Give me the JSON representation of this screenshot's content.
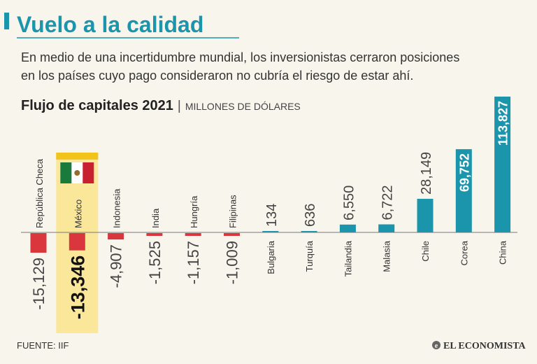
{
  "title": "Vuelo a la calidad",
  "subtitle_lines": [
    "En medio de una incertidumbre mundial, los inversionistas cerraron posiciones",
    "en los países cuyo pago consideraron no cubría el riesgo de estar ahí."
  ],
  "source": "FUENTE: IIF",
  "publisher": "EL ECONOMISTA",
  "colors": {
    "background": "#f8f5ec",
    "title": "#1b95ac",
    "negative": "#d9363e",
    "positive": "#1b95ac",
    "highlight": "#fbe79a",
    "highlight_band": "#f2c318",
    "text": "#333333"
  },
  "chart_data": {
    "type": "bar",
    "title": "Flujo de capitales 2021",
    "unit": "MILLONES DE DÓLARES",
    "categories": [
      "República Checa",
      "México",
      "Indonesia",
      "India",
      "Hungría",
      "Filipinas",
      "Bulgaria",
      "Turquía",
      "Tailandia",
      "Malasia",
      "Chile",
      "Corea",
      "China"
    ],
    "values": [
      -15129,
      -13346,
      -4907,
      -1525,
      -1157,
      -1009,
      134,
      636,
      6550,
      6722,
      28149,
      69752,
      113827
    ],
    "labels": [
      "-15,129",
      "-13,346",
      "-4,907",
      "-1,525",
      "-1,157",
      "-1,009",
      "134",
      "636",
      "6,550",
      "6,722",
      "28,149",
      "69,752",
      "113,827"
    ],
    "highlight": "México"
  }
}
